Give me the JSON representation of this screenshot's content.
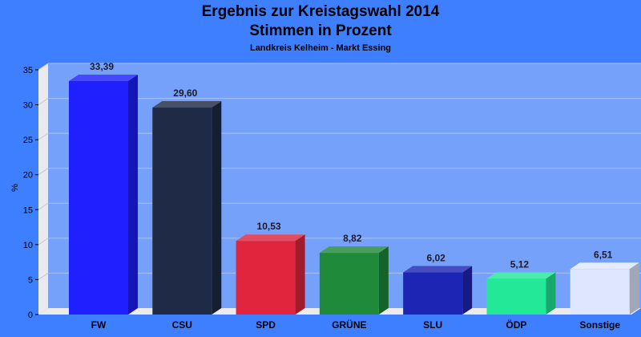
{
  "chart_data": {
    "type": "bar",
    "title": "Ergebnis zur Kreistagswahl 2014",
    "title2": "Stimmen in Prozent",
    "subtitle": "Landkreis Kelheim - Markt Essing",
    "ylabel": "%",
    "xlabel": "",
    "ylim": [
      0,
      35
    ],
    "yticks": [
      0,
      5,
      10,
      15,
      20,
      25,
      30,
      35
    ],
    "grid": true,
    "categories": [
      "FW",
      "CSU",
      "SPD",
      "GRÜNE",
      "SLU",
      "ÖDP",
      "Sonstige"
    ],
    "values": [
      33.39,
      29.6,
      10.53,
      8.82,
      6.02,
      5.12,
      6.51
    ],
    "value_labels": [
      "33,39",
      "29,60",
      "10,53",
      "8,82",
      "6,02",
      "5,12",
      "6,51"
    ],
    "colors": [
      "#1f1fff",
      "#1e2a46",
      "#e0253c",
      "#1e8a3a",
      "#1d26b4",
      "#22e898",
      "#dfe6ff"
    ],
    "background": "#3d7fff",
    "plot_background": "#76a1fb"
  }
}
